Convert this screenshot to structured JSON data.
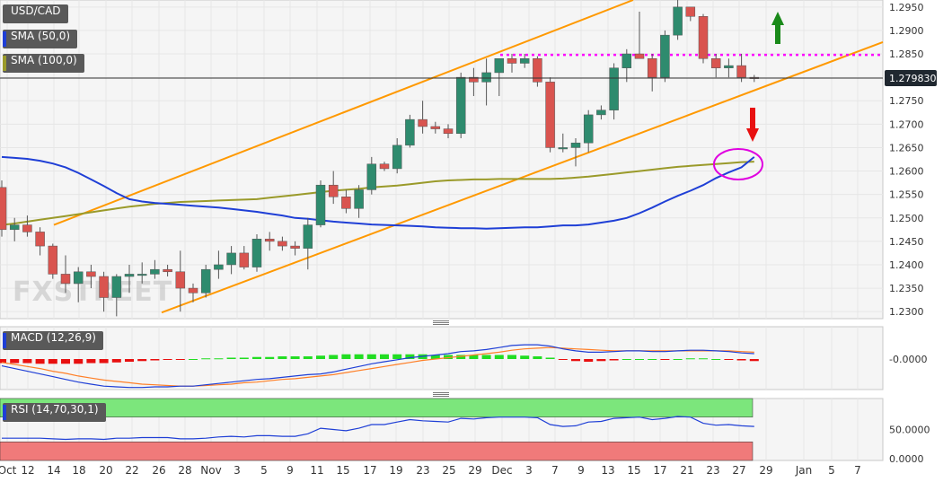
{
  "watermark": "FXSTREET",
  "price_panel": {
    "symbol": "USD/CAD",
    "indicators": [
      {
        "label": "SMA (50,0)",
        "color": "#1f3fd6"
      },
      {
        "label": "SMA (100,0)",
        "color": "#9a9a2a"
      }
    ],
    "last_price": "1.279830",
    "y_ticks": [
      "1.2950",
      "1.2900",
      "1.2850",
      "1.2800",
      "1.2750",
      "1.2700",
      "1.2650",
      "1.2600",
      "1.2550",
      "1.2500",
      "1.2450",
      "1.2400",
      "1.2350",
      "1.2300"
    ],
    "colors": {
      "up": "#2e8b6e",
      "down": "#d9544f",
      "channel": "#ff9900",
      "resistance": "#ff00ff",
      "arrow_up": "#1a8a1a",
      "arrow_down": "#e81010"
    }
  },
  "macd_panel": {
    "label": "MACD (12,26,9)",
    "y_ticks": [
      "-0.0000"
    ],
    "colors": {
      "macd": "#1f3fd6",
      "signal": "#ff7f27",
      "hist_pos": "#22dd22",
      "hist_neg": "#e81010"
    }
  },
  "rsi_panel": {
    "label": "RSI (14,70,30,1)",
    "y_ticks": [
      "50.0000",
      "0.0000"
    ],
    "colors": {
      "line": "#1f3fd6",
      "overbought": "#7ce67c",
      "oversold": "#f07a7a"
    }
  },
  "x_ticks": [
    "Oct",
    "12",
    "14",
    "18",
    "20",
    "22",
    "26",
    "28",
    "Nov",
    "3",
    "5",
    "9",
    "11",
    "15",
    "17",
    "19",
    "23",
    "25",
    "29",
    "Dec",
    "3",
    "7",
    "9",
    "13",
    "15",
    "17",
    "21",
    "23",
    "27",
    "29",
    "Jan",
    "5",
    "7"
  ],
  "chart_data": [
    {
      "type": "candlestick",
      "title": "USD/CAD",
      "ylim": [
        1.2285,
        1.2965
      ],
      "series": [
        {
          "name": "candles",
          "ohlc": [
            [
              1.2565,
              1.258,
              1.246,
              1.2475
            ],
            [
              1.2475,
              1.25,
              1.245,
              1.2485
            ],
            [
              1.2485,
              1.2505,
              1.246,
              1.247
            ],
            [
              1.247,
              1.248,
              1.242,
              1.244
            ],
            [
              1.244,
              1.2445,
              1.237,
              1.238
            ],
            [
              1.238,
              1.242,
              1.234,
              1.236
            ],
            [
              1.236,
              1.2395,
              1.232,
              1.2385
            ],
            [
              1.2385,
              1.24,
              1.235,
              1.2375
            ],
            [
              1.2375,
              1.2385,
              1.23,
              1.233
            ],
            [
              1.233,
              1.238,
              1.229,
              1.2375
            ],
            [
              1.2375,
              1.24,
              1.234,
              1.238
            ],
            [
              1.238,
              1.2405,
              1.236,
              1.238
            ],
            [
              1.238,
              1.241,
              1.237,
              1.239
            ],
            [
              1.239,
              1.24,
              1.2375,
              1.2385
            ],
            [
              1.2385,
              1.243,
              1.23,
              1.235
            ],
            [
              1.235,
              1.236,
              1.232,
              1.234
            ],
            [
              1.234,
              1.24,
              1.233,
              1.239
            ],
            [
              1.239,
              1.243,
              1.237,
              1.24
            ],
            [
              1.24,
              1.244,
              1.238,
              1.2425
            ],
            [
              1.2425,
              1.244,
              1.239,
              1.2395
            ],
            [
              1.2395,
              1.2465,
              1.2385,
              1.2455
            ],
            [
              1.2455,
              1.247,
              1.243,
              1.245
            ],
            [
              1.245,
              1.246,
              1.243,
              1.244
            ],
            [
              1.244,
              1.245,
              1.242,
              1.2435
            ],
            [
              1.2435,
              1.25,
              1.239,
              1.2485
            ],
            [
              1.2485,
              1.258,
              1.248,
              1.257
            ],
            [
              1.257,
              1.26,
              1.253,
              1.2545
            ],
            [
              1.2545,
              1.256,
              1.251,
              1.252
            ],
            [
              1.252,
              1.257,
              1.25,
              1.256
            ],
            [
              1.256,
              1.263,
              1.255,
              1.2615
            ],
            [
              1.2615,
              1.262,
              1.26,
              1.2605
            ],
            [
              1.2605,
              1.267,
              1.2595,
              1.2655
            ],
            [
              1.2655,
              1.272,
              1.265,
              1.271
            ],
            [
              1.271,
              1.275,
              1.268,
              1.2695
            ],
            [
              1.2695,
              1.2705,
              1.268,
              1.269
            ],
            [
              1.269,
              1.27,
              1.267,
              1.268
            ],
            [
              1.268,
              1.281,
              1.267,
              1.28
            ],
            [
              1.28,
              1.282,
              1.276,
              1.279
            ],
            [
              1.279,
              1.284,
              1.274,
              1.281
            ],
            [
              1.281,
              1.284,
              1.276,
              1.284
            ],
            [
              1.284,
              1.285,
              1.281,
              1.283
            ],
            [
              1.283,
              1.285,
              1.282,
              1.284
            ],
            [
              1.284,
              1.2845,
              1.278,
              1.279
            ],
            [
              1.279,
              1.28,
              1.264,
              1.265
            ],
            [
              1.265,
              1.268,
              1.264,
              1.265
            ],
            [
              1.265,
              1.267,
              1.261,
              1.266
            ],
            [
              1.266,
              1.273,
              1.264,
              1.272
            ],
            [
              1.272,
              1.274,
              1.271,
              1.273
            ],
            [
              1.273,
              1.283,
              1.271,
              1.282
            ],
            [
              1.282,
              1.286,
              1.279,
              1.285
            ],
            [
              1.285,
              1.294,
              1.284,
              1.284
            ],
            [
              1.284,
              1.285,
              1.277,
              1.28
            ],
            [
              1.28,
              1.29,
              1.279,
              1.289
            ],
            [
              1.289,
              1.2965,
              1.288,
              1.295
            ],
            [
              1.295,
              1.2945,
              1.292,
              1.293
            ],
            [
              1.293,
              1.2935,
              1.283,
              1.284
            ],
            [
              1.284,
              1.285,
              1.28,
              1.282
            ],
            [
              1.282,
              1.284,
              1.28,
              1.2825
            ],
            [
              1.2825,
              1.285,
              1.279,
              1.28
            ],
            [
              1.28,
              1.2805,
              1.279,
              1.2798
            ]
          ]
        },
        {
          "name": "SMA (50,0)",
          "values": [
            1.263,
            1.2628,
            1.2626,
            1.2622,
            1.2616,
            1.2608,
            1.2596,
            1.2582,
            1.2568,
            1.2553,
            1.254,
            1.2535,
            1.2532,
            1.253,
            1.2528,
            1.2526,
            1.2524,
            1.2522,
            1.2519,
            1.2516,
            1.2513,
            1.2509,
            1.2505,
            1.25,
            1.2498,
            1.2495,
            1.2492,
            1.249,
            1.2488,
            1.2486,
            1.2485,
            1.2484,
            1.2483,
            1.2482,
            1.248,
            1.2479,
            1.2478,
            1.2478,
            1.2477,
            1.2478,
            1.2479,
            1.248,
            1.248,
            1.2482,
            1.2484,
            1.2484,
            1.2486,
            1.249,
            1.2494,
            1.25,
            1.251,
            1.2522,
            1.2535,
            1.2547,
            1.2558,
            1.257,
            1.2585,
            1.2597,
            1.2608,
            1.263
          ]
        },
        {
          "name": "SMA (100,0)",
          "values": [
            1.2485,
            1.2488,
            1.2492,
            1.2496,
            1.25,
            1.2504,
            1.2508,
            1.2512,
            1.2516,
            1.252,
            1.2524,
            1.2527,
            1.253,
            1.2532,
            1.2534,
            1.2535,
            1.2536,
            1.2537,
            1.2538,
            1.2539,
            1.254,
            1.2543,
            1.2546,
            1.2549,
            1.2552,
            1.2555,
            1.2558,
            1.256,
            1.2562,
            1.2565,
            1.2567,
            1.2569,
            1.2572,
            1.2575,
            1.2578,
            1.258,
            1.2581,
            1.2582,
            1.2582,
            1.2583,
            1.2583,
            1.2583,
            1.2583,
            1.2583,
            1.2584,
            1.2586,
            1.2588,
            1.2591,
            1.2594,
            1.2597,
            1.26,
            1.2603,
            1.2606,
            1.2609,
            1.2611,
            1.2613,
            1.2615,
            1.2617,
            1.2619,
            1.262
          ]
        }
      ]
    },
    {
      "type": "macd",
      "title": "MACD (12,26,9)",
      "series": [
        {
          "name": "MACD",
          "values": [
            -0.001,
            -0.0014,
            -0.0018,
            -0.0022,
            -0.0026,
            -0.003,
            -0.0034,
            -0.0037,
            -0.004,
            -0.0041,
            -0.0042,
            -0.0042,
            -0.0041,
            -0.0041,
            -0.004,
            -0.004,
            -0.0038,
            -0.0036,
            -0.0034,
            -0.0032,
            -0.003,
            -0.0029,
            -0.0027,
            -0.0025,
            -0.0023,
            -0.0022,
            -0.0019,
            -0.0015,
            -0.0011,
            -0.0007,
            -0.0004,
            -0.0001,
            0.0002,
            0.0004,
            0.0006,
            0.0008,
            0.0011,
            0.0012,
            0.0014,
            0.0017,
            0.002,
            0.0021,
            0.0021,
            0.0019,
            0.0015,
            0.0012,
            0.001,
            0.001,
            0.0011,
            0.0012,
            0.0012,
            0.0011,
            0.0011,
            0.0012,
            0.0013,
            0.0013,
            0.0012,
            0.0011,
            0.0009,
            0.0008
          ]
        },
        {
          "name": "Signal",
          "values": [
            -0.0005,
            -0.0008,
            -0.0011,
            -0.0014,
            -0.0018,
            -0.0021,
            -0.0025,
            -0.0028,
            -0.0031,
            -0.0033,
            -0.0035,
            -0.0037,
            -0.0038,
            -0.0039,
            -0.004,
            -0.004,
            -0.0039,
            -0.0038,
            -0.0037,
            -0.0035,
            -0.0034,
            -0.0032,
            -0.003,
            -0.0029,
            -0.0027,
            -0.0025,
            -0.0023,
            -0.002,
            -0.0017,
            -0.0014,
            -0.0011,
            -0.0008,
            -0.0005,
            -0.0002,
            0.0,
            0.0002,
            0.0004,
            0.0006,
            0.0008,
            0.001,
            0.0013,
            0.0015,
            0.0016,
            0.0017,
            0.0016,
            0.0015,
            0.0014,
            0.0013,
            0.0012,
            0.0012,
            0.0012,
            0.0012,
            0.0012,
            0.0012,
            0.0012,
            0.0012,
            0.0012,
            0.0012,
            0.0011,
            0.001
          ]
        },
        {
          "name": "Histogram",
          "values": [
            -0.0006,
            -0.0006,
            -0.0006,
            -0.0007,
            -0.0007,
            -0.0007,
            -0.0007,
            -0.0006,
            -0.0006,
            -0.0005,
            -0.0004,
            -0.0003,
            -0.0002,
            -0.0001,
            -0.0001,
            0.0,
            0.0001,
            0.0001,
            0.0002,
            0.0002,
            0.0003,
            0.0003,
            0.0004,
            0.0004,
            0.0004,
            0.0005,
            0.0006,
            0.0007,
            0.0007,
            0.0007,
            0.0007,
            0.0007,
            0.0007,
            0.0007,
            0.0006,
            0.0006,
            0.0006,
            0.0006,
            0.0006,
            0.0006,
            0.0006,
            0.0005,
            0.0004,
            0.0002,
            -0.0001,
            -0.0003,
            -0.0004,
            -0.0003,
            -0.0002,
            0.0,
            0.0,
            0.0,
            -0.0001,
            0.0,
            0.0001,
            0.0001,
            0.0,
            -0.0001,
            -0.0002,
            -0.0003
          ]
        }
      ]
    },
    {
      "type": "line",
      "title": "RSI (14,70,30,1)",
      "series": [
        {
          "name": "RSI",
          "values": [
            36,
            36,
            36,
            36,
            35,
            34,
            35,
            35,
            34,
            36,
            36,
            37,
            37,
            37,
            35,
            35,
            36,
            38,
            39,
            38,
            40,
            40,
            39,
            39,
            43,
            52,
            50,
            48,
            52,
            58,
            58,
            62,
            66,
            64,
            63,
            62,
            68,
            67,
            69,
            70,
            70,
            70,
            69,
            58,
            55,
            56,
            62,
            63,
            68,
            69,
            70,
            66,
            68,
            71,
            70,
            60,
            57,
            58,
            56,
            55
          ]
        }
      ]
    }
  ]
}
